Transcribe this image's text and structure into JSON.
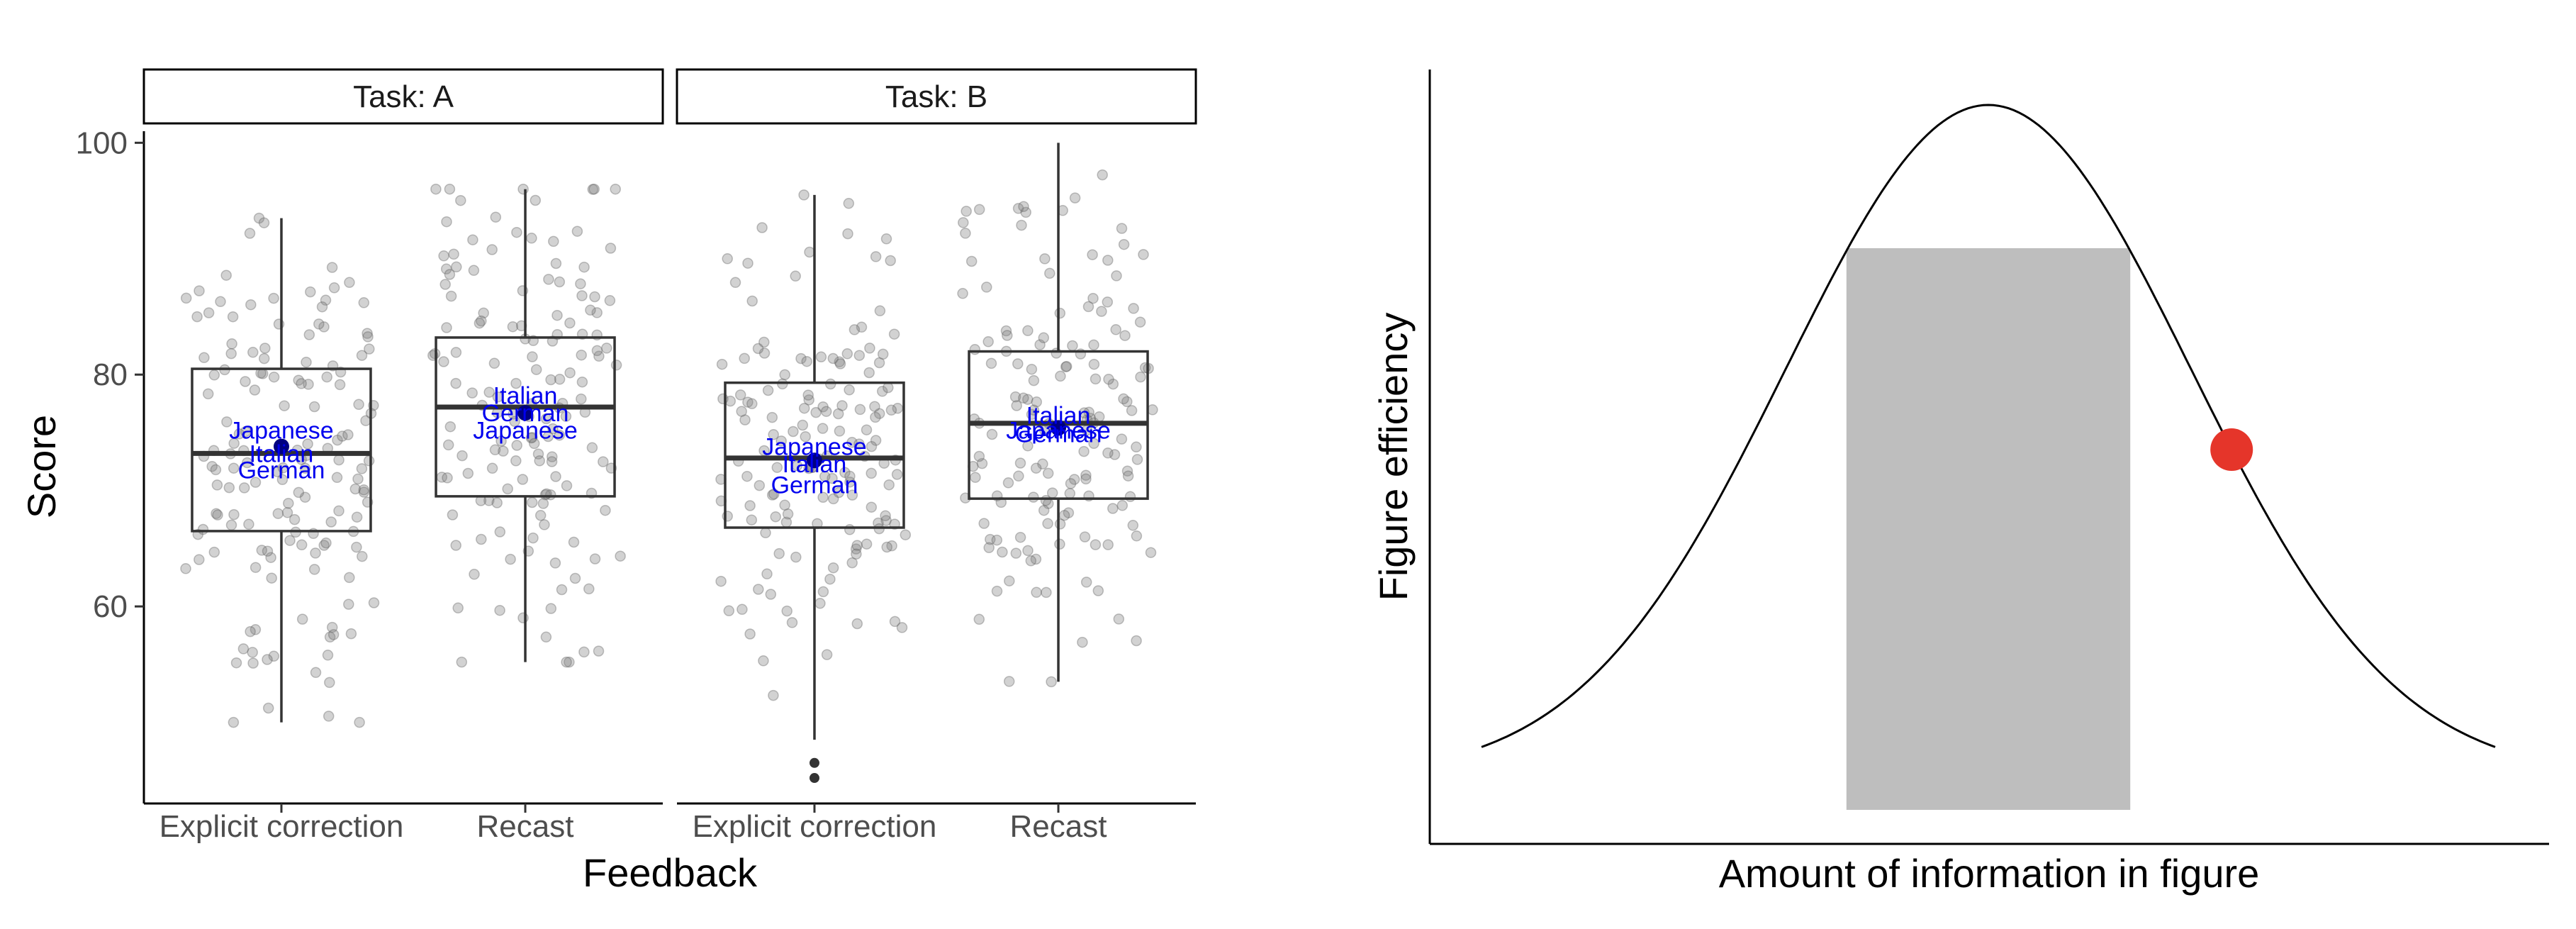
{
  "chart_data": [
    {
      "type": "boxplot",
      "ylabel": "Score",
      "xlabel": "Feedback",
      "y_ticks": [
        60,
        80,
        100
      ],
      "ylim": [
        43,
        101
      ],
      "categories": [
        "Explicit correction",
        "Recast"
      ],
      "grid": false,
      "panels": [
        {
          "strip": "Task: A",
          "groups": [
            {
              "category": "Explicit correction",
              "box": {
                "whisker_low": 50,
                "q1": 66.5,
                "median": 73.2,
                "q3": 80.5,
                "whisker_high": 93.5
              },
              "mean": 73.8,
              "outliers": [],
              "group_labels": [
                {
                  "text": "Japanese",
                  "y": 75.2
                },
                {
                  "text": "Italian",
                  "y": 73.2
                },
                {
                  "text": "German",
                  "y": 71.8
                }
              ]
            },
            {
              "category": "Recast",
              "box": {
                "whisker_low": 55.2,
                "q1": 69.5,
                "median": 77.2,
                "q3": 83.2,
                "whisker_high": 96
              },
              "mean": 76.7,
              "outliers": [],
              "group_labels": [
                {
                  "text": "Italian",
                  "y": 78.2
                },
                {
                  "text": "German",
                  "y": 76.7
                },
                {
                  "text": "Japanese",
                  "y": 75.2
                }
              ]
            }
          ]
        },
        {
          "strip": "Task: B",
          "groups": [
            {
              "category": "Explicit correction",
              "box": {
                "whisker_low": 48.5,
                "q1": 66.8,
                "median": 72.8,
                "q3": 79.3,
                "whisker_high": 95.5
              },
              "mean": 72.6,
              "outliers": [
                46.5,
                45.2
              ],
              "group_labels": [
                {
                  "text": "Japanese",
                  "y": 73.8
                },
                {
                  "text": "Italian",
                  "y": 72.3
                },
                {
                  "text": "German",
                  "y": 70.5
                }
              ]
            },
            {
              "category": "Recast",
              "box": {
                "whisker_low": 53.5,
                "q1": 69.3,
                "median": 75.8,
                "q3": 82,
                "whisker_high": 100
              },
              "mean": 75.4,
              "outliers": [],
              "group_labels": [
                {
                  "text": "Italian",
                  "y": 76.5
                },
                {
                  "text": "Japanese",
                  "y": 75.2
                },
                {
                  "text": "German",
                  "y": 74.9
                }
              ]
            }
          ]
        }
      ]
    },
    {
      "type": "area",
      "xlabel": "Amount of information in figure",
      "ylabel": "Figure efficiency",
      "curve": "bell",
      "x_range": [
        0,
        1
      ],
      "peak_x": 0.5,
      "shaded_band": {
        "from": 0.36,
        "to": 0.64,
        "color": "#bebebe"
      },
      "highlight_point": {
        "x": 0.74,
        "color": "#e5352a"
      },
      "grid": false
    }
  ]
}
